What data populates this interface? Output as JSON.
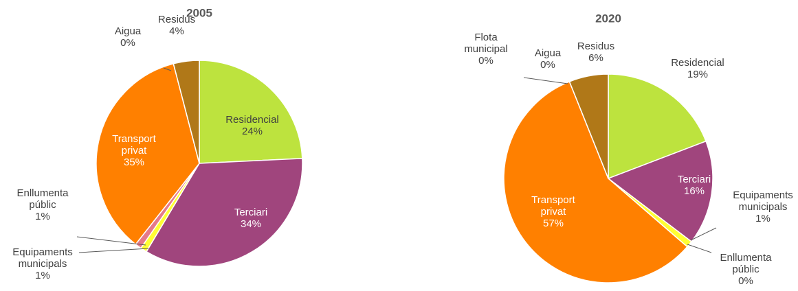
{
  "chart_data": [
    {
      "type": "pie",
      "title": "2005",
      "categories": [
        "Residencial",
        "Terciari",
        "Equipaments municipals",
        "Enllumenta públic",
        "Transport privat",
        "Aigua",
        "Residus"
      ],
      "values": [
        24,
        34,
        1,
        1,
        35,
        0,
        4
      ],
      "value_labels": [
        "24%",
        "34%",
        "1%",
        "1%",
        "35%",
        "0%",
        "4%"
      ],
      "colors": [
        "#bde33e",
        "#a0457d",
        "#ffff33",
        "#e57a8a",
        "#ff8000",
        "#1f4e2e",
        "#b07818"
      ]
    },
    {
      "type": "pie",
      "title": "2020",
      "categories": [
        "Residencial",
        "Terciari",
        "Equipaments municipals",
        "Enllumenta públic",
        "Transport privat",
        "Flota municipal",
        "Aigua",
        "Residus"
      ],
      "values": [
        19,
        16,
        1,
        0,
        57,
        0,
        0,
        6
      ],
      "value_labels": [
        "19%",
        "16%",
        "1%",
        "0%",
        "57%",
        "0%",
        "0%",
        "6%"
      ],
      "colors": [
        "#bde33e",
        "#a0457d",
        "#ffff33",
        "#e57a8a",
        "#ff8000",
        "#8fd3f0",
        "#1f4e2e",
        "#b07818"
      ]
    }
  ]
}
